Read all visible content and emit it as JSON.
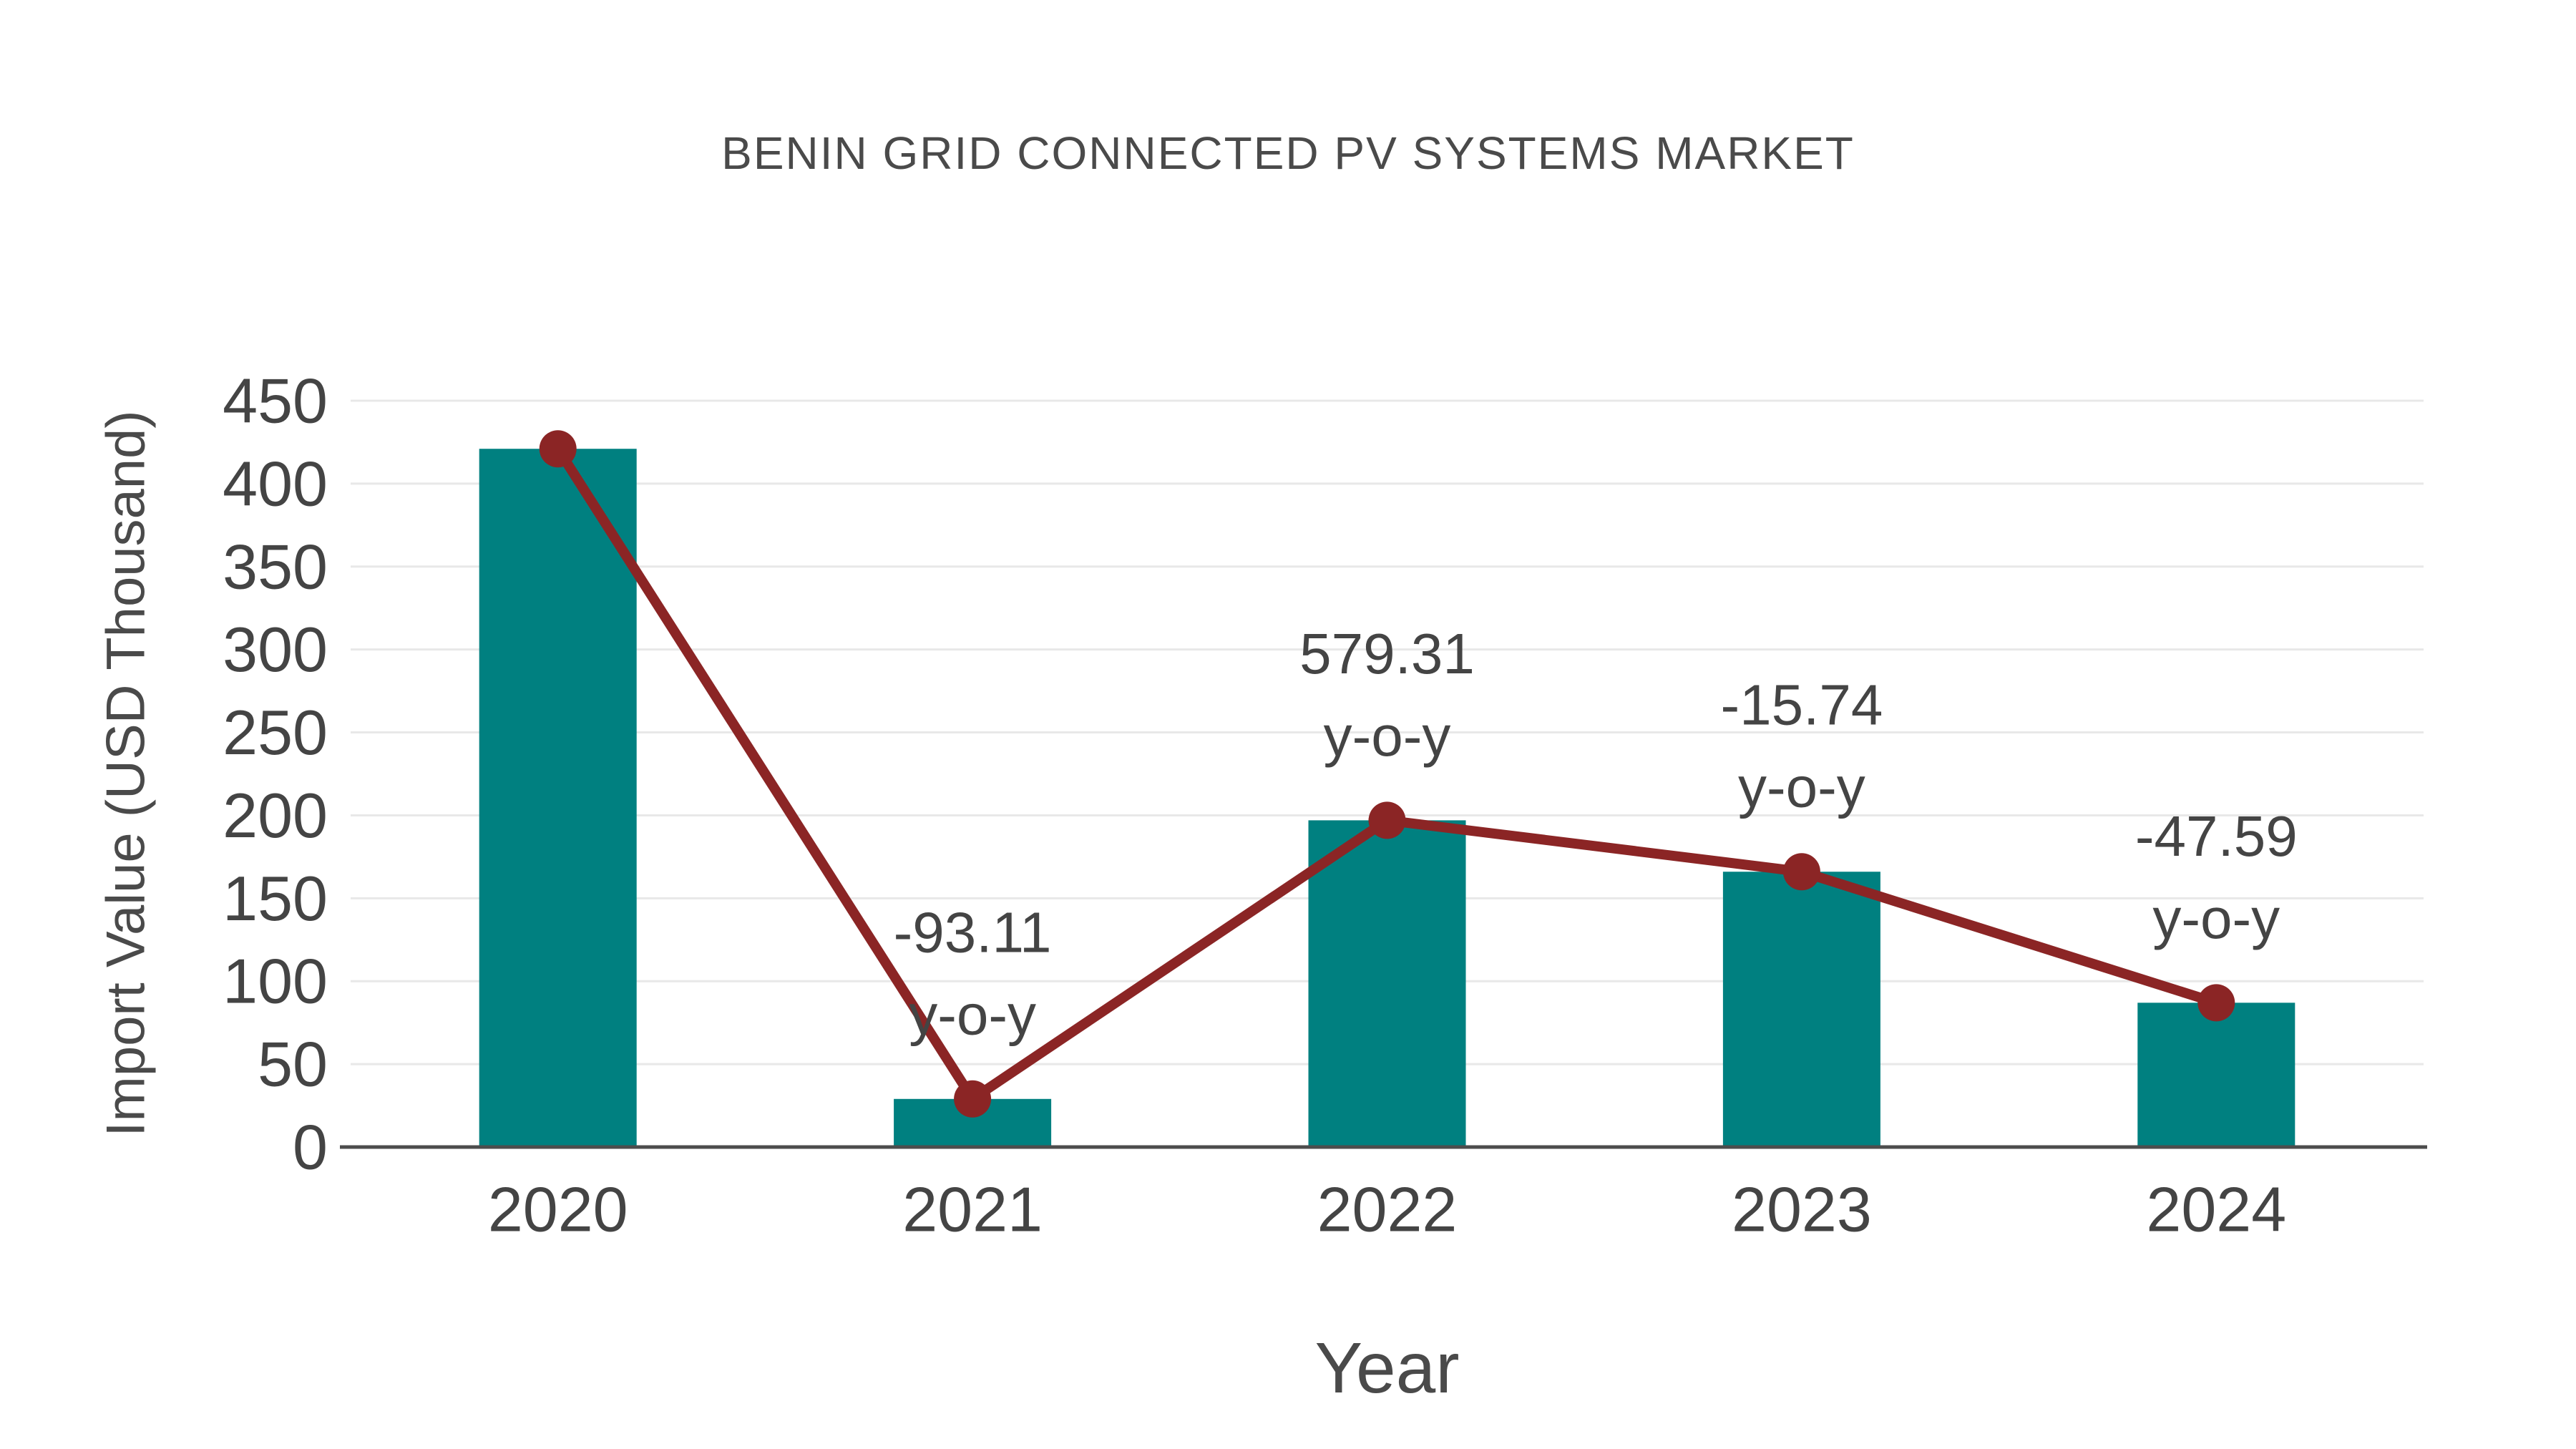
{
  "chart_data": {
    "type": "bar",
    "overlay": "line",
    "title": "BENIN GRID CONNECTED PV SYSTEMS MARKET",
    "xlabel": "Year",
    "ylabel": "Import Value (USD Thousand)",
    "categories": [
      "2020",
      "2021",
      "2022",
      "2023",
      "2024"
    ],
    "series": [
      {
        "name": "Import Value (USD Thousand)",
        "type": "bar",
        "color": "#008080",
        "values": [
          421,
          29,
          197,
          166,
          87
        ]
      },
      {
        "name": "Year-over-year trend",
        "type": "line",
        "color": "#8B2525",
        "values": [
          421,
          29,
          197,
          166,
          87
        ]
      }
    ],
    "annotations": [
      {
        "category": "2021",
        "value_label": "-93.11",
        "suffix_label": "y-o-y"
      },
      {
        "category": "2022",
        "value_label": "579.31",
        "suffix_label": "y-o-y"
      },
      {
        "category": "2023",
        "value_label": "-15.74",
        "suffix_label": "y-o-y"
      },
      {
        "category": "2024",
        "value_label": "-47.59",
        "suffix_label": "y-o-y"
      }
    ],
    "yticks": [
      0,
      50,
      100,
      150,
      200,
      250,
      300,
      350,
      400,
      450
    ],
    "ylim": [
      0,
      450
    ],
    "grid": true,
    "legend": "none",
    "colors": {
      "bar": "#008080",
      "line": "#8B2525",
      "grid": "#E8E8E8",
      "axis": "#4D4D4D",
      "text": "#444444"
    }
  }
}
